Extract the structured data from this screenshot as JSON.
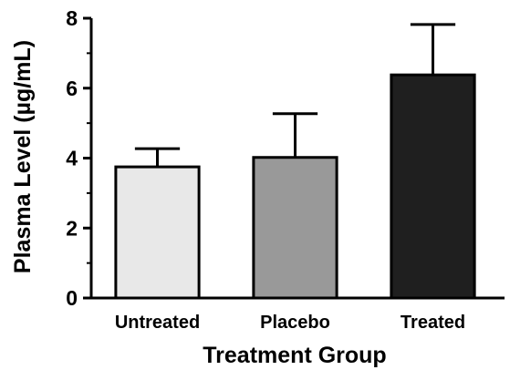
{
  "chart_data": {
    "type": "bar",
    "title": "",
    "xlabel": "Treatment Group",
    "ylabel": "Plasma Level (µg/mL)",
    "ylim": [
      0,
      8
    ],
    "yticks": [
      0,
      2,
      4,
      6,
      8
    ],
    "grid": false,
    "categories": [
      "Untreated",
      "Placebo",
      "Treated"
    ],
    "values": [
      3.75,
      4.02,
      6.38
    ],
    "error_upper": [
      0.52,
      1.25,
      1.44
    ],
    "bar_colors": [
      "#e8e8e8",
      "#999999",
      "#1f1f1f"
    ]
  }
}
